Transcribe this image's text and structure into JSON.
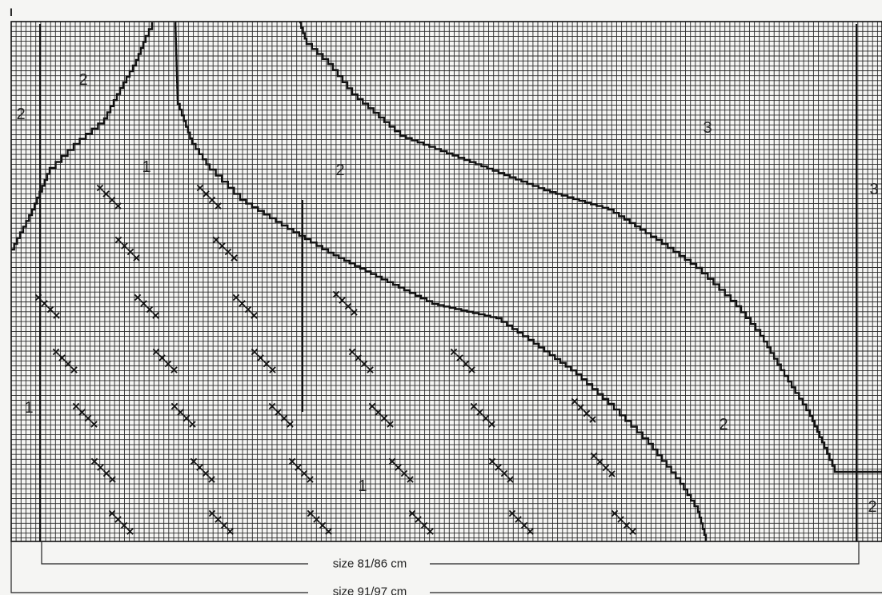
{
  "diagram": {
    "zone_labels": [
      "2",
      "2",
      "1",
      "2",
      "3",
      "3",
      "1",
      "1",
      "2",
      "2"
    ],
    "marker_top": "I",
    "dimension_labels": [
      "size 81/86 cm",
      "size 91/97 cm"
    ]
  },
  "colors": {
    "background": "#f5f5f3",
    "grid_line": "#2a2a2a",
    "ink": "#111111"
  }
}
